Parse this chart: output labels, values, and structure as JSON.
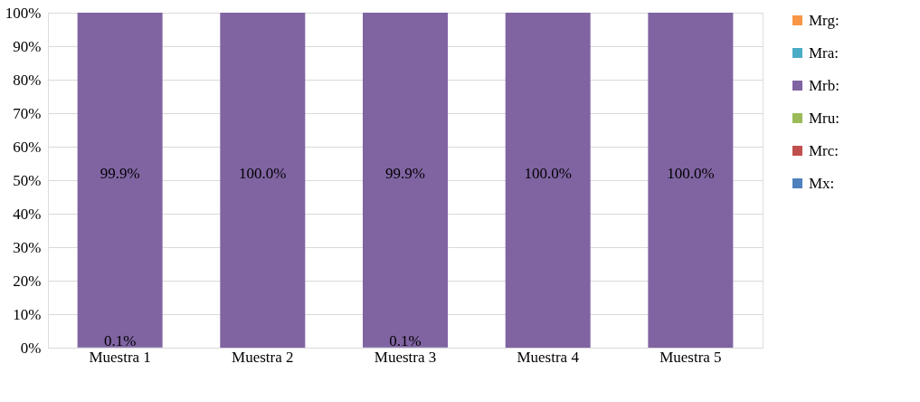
{
  "chart_data": {
    "type": "bar",
    "stacked": true,
    "categories": [
      "Muestra 1",
      "Muestra 2",
      "Muestra 3",
      "Muestra 4",
      "Muestra 5"
    ],
    "series": [
      {
        "name": "Mx:",
        "color": "#4f81bd",
        "values": [
          0.1,
          0,
          0.1,
          0,
          0
        ],
        "value_labels": [
          "0.1%",
          null,
          "0.1%",
          null,
          null
        ]
      },
      {
        "name": "Mrc:",
        "color": "#c0504d",
        "values": [
          0,
          0,
          0,
          0,
          0
        ],
        "value_labels": [
          null,
          null,
          null,
          null,
          null
        ]
      },
      {
        "name": "Mru:",
        "color": "#9bbb59",
        "values": [
          0,
          0,
          0,
          0,
          0
        ],
        "value_labels": [
          null,
          null,
          null,
          null,
          null
        ]
      },
      {
        "name": "Mrb:",
        "color": "#8064a2",
        "values": [
          99.9,
          100,
          99.9,
          100,
          100
        ],
        "value_labels": [
          "99.9%",
          "100.0%",
          "99.9%",
          "100.0%",
          "100.0%"
        ]
      },
      {
        "name": "Mra:",
        "color": "#4bacc6",
        "values": [
          0,
          0,
          0,
          0,
          0
        ],
        "value_labels": [
          null,
          null,
          null,
          null,
          null
        ]
      },
      {
        "name": "Mrg:",
        "color": "#f79646",
        "values": [
          0,
          0,
          0,
          0,
          0
        ],
        "value_labels": [
          null,
          null,
          null,
          null,
          null
        ]
      }
    ],
    "ylim": [
      0,
      100
    ],
    "yticks": [
      {
        "value": 0,
        "label": "0%"
      },
      {
        "value": 10,
        "label": "10%"
      },
      {
        "value": 20,
        "label": "20%"
      },
      {
        "value": 30,
        "label": "30%"
      },
      {
        "value": 40,
        "label": "40%"
      },
      {
        "value": 50,
        "label": "50%"
      },
      {
        "value": 60,
        "label": "60%"
      },
      {
        "value": 70,
        "label": "70%"
      },
      {
        "value": 80,
        "label": "80%"
      },
      {
        "value": 90,
        "label": "90%"
      },
      {
        "value": 100,
        "label": "100%"
      }
    ],
    "grid": "y",
    "legend": "right"
  }
}
